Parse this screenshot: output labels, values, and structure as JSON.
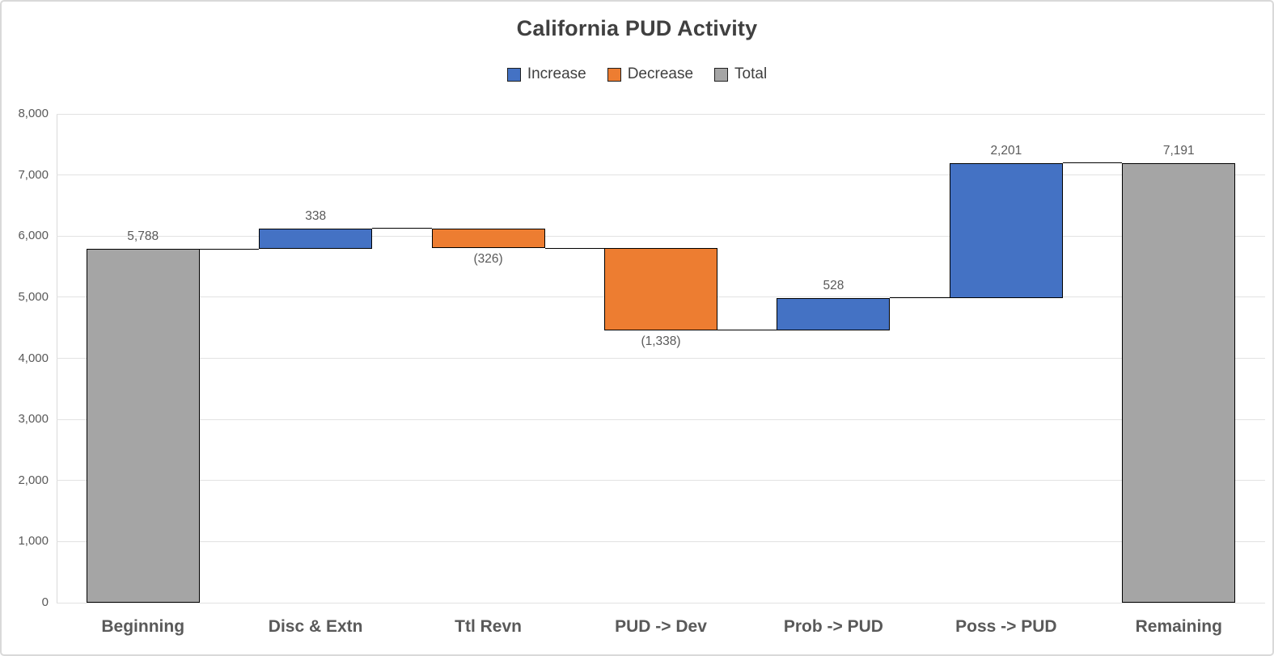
{
  "chart_data": {
    "type": "waterfall",
    "title": "California PUD Activity",
    "legend_position": "top",
    "legend": [
      {
        "label": "Increase",
        "kind": "increase"
      },
      {
        "label": "Decrease",
        "kind": "decrease"
      },
      {
        "label": "Total",
        "kind": "total"
      }
    ],
    "colors": {
      "increase": "#4472C4",
      "decrease": "#ED7D31",
      "total": "#A5A5A5",
      "bar_border": "#000000",
      "gridline": "#E2E2E2",
      "axis_line": "#D9D9D9",
      "value_label_text": "#595959",
      "category_text": "#595959",
      "title_text": "#404040"
    },
    "grid": true,
    "ylim": [
      0,
      8000
    ],
    "yticks": {
      "values": [
        0,
        1000,
        2000,
        3000,
        4000,
        5000,
        6000,
        7000,
        8000
      ],
      "labels": [
        "0",
        "1,000",
        "2,000",
        "3,000",
        "4,000",
        "5,000",
        "6,000",
        "7,000",
        "8,000"
      ]
    },
    "categories": [
      "Beginning",
      "Disc & Extn",
      "Ttl Revn",
      "PUD -> Dev",
      "Prob -> PUD",
      "Poss -> PUD",
      "Remaining"
    ],
    "bars": [
      {
        "category": "Beginning",
        "kind": "total",
        "start": 0,
        "end": 5788,
        "value": 5788,
        "label": "5,788",
        "label_position": "above"
      },
      {
        "category": "Disc & Extn",
        "kind": "increase",
        "start": 5788,
        "end": 6126,
        "value": 338,
        "label": "338",
        "label_position": "above"
      },
      {
        "category": "Ttl Revn",
        "kind": "decrease",
        "start": 6126,
        "end": 5800,
        "value": -326,
        "label": "(326)",
        "label_position": "below"
      },
      {
        "category": "PUD -> Dev",
        "kind": "decrease",
        "start": 5800,
        "end": 4462,
        "value": -1338,
        "label": "(1,338)",
        "label_position": "below"
      },
      {
        "category": "Prob -> PUD",
        "kind": "increase",
        "start": 4462,
        "end": 4990,
        "value": 528,
        "label": "528",
        "label_position": "above"
      },
      {
        "category": "Poss -> PUD",
        "kind": "increase",
        "start": 4990,
        "end": 7191,
        "value": 2201,
        "label": "2,201",
        "label_position": "above"
      },
      {
        "category": "Remaining",
        "kind": "total",
        "start": 0,
        "end": 7191,
        "value": 7191,
        "label": "7,191",
        "label_position": "above"
      }
    ]
  }
}
